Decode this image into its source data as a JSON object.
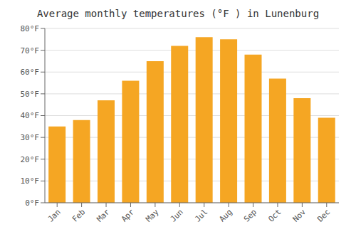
{
  "chart_data": {
    "type": "bar",
    "title": "Average monthly temperatures (°F ) in Lunenburg",
    "categories": [
      "Jan",
      "Feb",
      "Mar",
      "Apr",
      "May",
      "Jun",
      "Jul",
      "Aug",
      "Sep",
      "Oct",
      "Nov",
      "Dec"
    ],
    "values": [
      35,
      38,
      47,
      56,
      65,
      72,
      76,
      75,
      68,
      57,
      48,
      39
    ],
    "color": "#F5A623",
    "ylim": [
      0,
      80
    ],
    "yticks": [
      {
        "value": 0,
        "label": "0°F"
      },
      {
        "value": 10,
        "label": "10°F"
      },
      {
        "value": 20,
        "label": "20°F"
      },
      {
        "value": 30,
        "label": "30°F"
      },
      {
        "value": 40,
        "label": "40°F"
      },
      {
        "value": 50,
        "label": "50°F"
      },
      {
        "value": 60,
        "label": "60°F"
      },
      {
        "value": 70,
        "label": "70°F"
      },
      {
        "value": 80,
        "label": "80°F"
      }
    ],
    "grid": true
  }
}
